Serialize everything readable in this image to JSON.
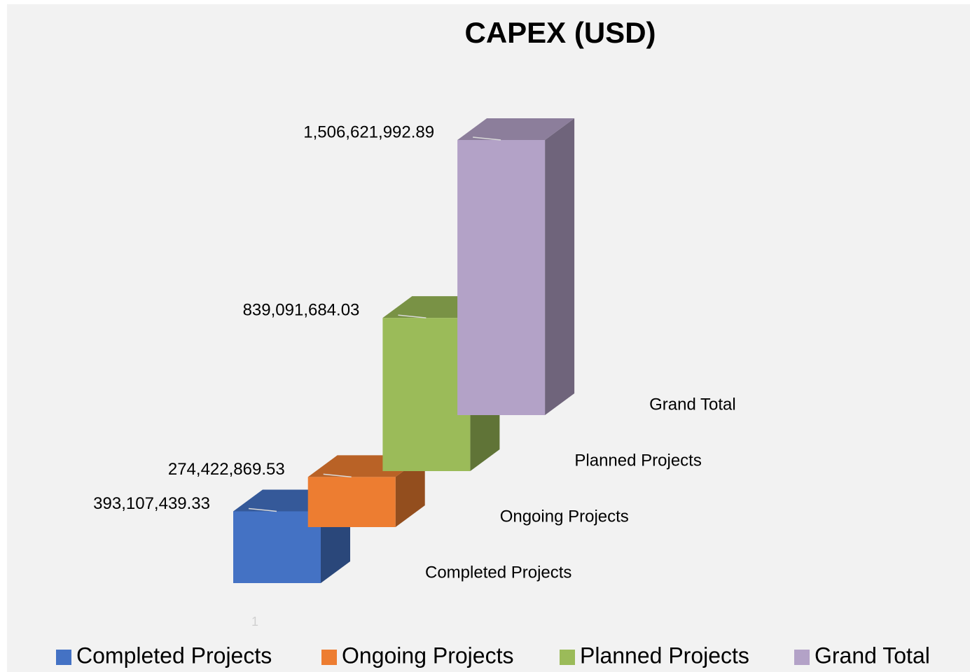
{
  "chart_data": {
    "type": "bar3d",
    "title": "CAPEX (USD)",
    "categories": [
      "1"
    ],
    "series": [
      {
        "name": "Completed Projects",
        "color": "#4472c4",
        "values": [
          393107439.33
        ],
        "value_labels": [
          "393,107,439.33"
        ]
      },
      {
        "name": "Ongoing Projects",
        "color": "#ed7d31",
        "values": [
          274422869.53
        ],
        "value_labels": [
          "274,422,869.53"
        ]
      },
      {
        "name": "Planned Projects",
        "color": "#9bbb59",
        "values": [
          839091684.03
        ],
        "value_labels": [
          "839,091,684.03"
        ]
      },
      {
        "name": "Grand Total",
        "color": "#b3a2c7",
        "values": [
          1506621992.89
        ],
        "value_labels": [
          "1,506,621,992.89"
        ]
      }
    ],
    "legend": "bottom"
  }
}
